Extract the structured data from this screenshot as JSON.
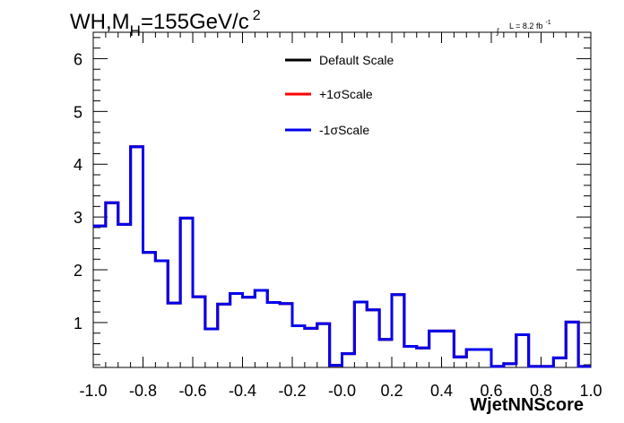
{
  "chart_data": {
    "type": "line",
    "title": {
      "main": "WH,M",
      "sub": "H",
      "rest": "=155GeV/c",
      "sup": "2"
    },
    "lumi": {
      "integral": "∫",
      "text": "L = 8.2 fb",
      "sup": "-1"
    },
    "xlabel": "WjetNNScore",
    "ylabel": "",
    "xlim": [
      -1.0,
      1.0
    ],
    "ylim": [
      0.15,
      6.5
    ],
    "xticks": [
      -1.0,
      -0.8,
      -0.6,
      -0.4,
      -0.2,
      0.0,
      0.2,
      0.4,
      0.6,
      0.8,
      1.0
    ],
    "xtick_labels": [
      "-1.0",
      "-0.8",
      "-0.6",
      "-0.4",
      "-0.2",
      "-0.0",
      "0.2",
      "0.4",
      "0.6",
      "0.8",
      "1.0"
    ],
    "yticks": [
      1,
      2,
      3,
      4,
      5,
      6
    ],
    "ytick_labels": [
      "1",
      "2",
      "3",
      "4",
      "5",
      "6"
    ],
    "bin_edges": [
      -1.0,
      -0.95,
      -0.9,
      -0.85,
      -0.8,
      -0.75,
      -0.7,
      -0.65,
      -0.6,
      -0.55,
      -0.5,
      -0.45,
      -0.4,
      -0.35,
      -0.3,
      -0.25,
      -0.2,
      -0.15,
      -0.1,
      -0.05,
      0.0,
      0.05,
      0.1,
      0.15,
      0.2,
      0.25,
      0.3,
      0.35,
      0.4,
      0.45,
      0.5,
      0.55,
      0.6,
      0.65,
      0.7,
      0.75,
      0.8,
      0.85,
      0.9,
      0.95,
      1.0
    ],
    "legend_position": "top-center",
    "series": [
      {
        "name": "Default Scale",
        "color": "#000000",
        "values": [
          2.83,
          3.27,
          2.86,
          4.33,
          2.33,
          2.17,
          1.37,
          2.98,
          1.49,
          0.88,
          1.35,
          1.55,
          1.48,
          1.61,
          1.38,
          1.36,
          0.94,
          0.89,
          0.98,
          0.19,
          0.41,
          1.39,
          1.24,
          0.68,
          1.53,
          0.55,
          0.52,
          0.84,
          0.84,
          0.35,
          0.49,
          0.49,
          0.17,
          0.22,
          0.77,
          0.17,
          0.17,
          0.33,
          1.01,
          0.17
        ]
      },
      {
        "name": "+1σScale",
        "color": "#ff0000",
        "values": [
          2.83,
          3.27,
          2.86,
          4.33,
          2.33,
          2.17,
          1.37,
          2.98,
          1.49,
          0.88,
          1.35,
          1.55,
          1.48,
          1.61,
          1.38,
          1.36,
          0.94,
          0.89,
          0.98,
          0.19,
          0.41,
          1.39,
          1.24,
          0.68,
          1.53,
          0.55,
          0.52,
          0.84,
          0.84,
          0.35,
          0.49,
          0.49,
          0.17,
          0.22,
          0.77,
          0.17,
          0.17,
          0.33,
          1.01,
          0.17
        ]
      },
      {
        "name": "-1σScale",
        "color": "#0000ee",
        "values": [
          2.83,
          3.27,
          2.86,
          4.33,
          2.33,
          2.17,
          1.37,
          2.98,
          1.49,
          0.88,
          1.35,
          1.55,
          1.48,
          1.61,
          1.38,
          1.36,
          0.94,
          0.89,
          0.98,
          0.19,
          0.41,
          1.39,
          1.24,
          0.68,
          1.53,
          0.55,
          0.52,
          0.84,
          0.84,
          0.35,
          0.49,
          0.49,
          0.17,
          0.22,
          0.77,
          0.17,
          0.17,
          0.33,
          1.01,
          0.17
        ]
      }
    ]
  }
}
